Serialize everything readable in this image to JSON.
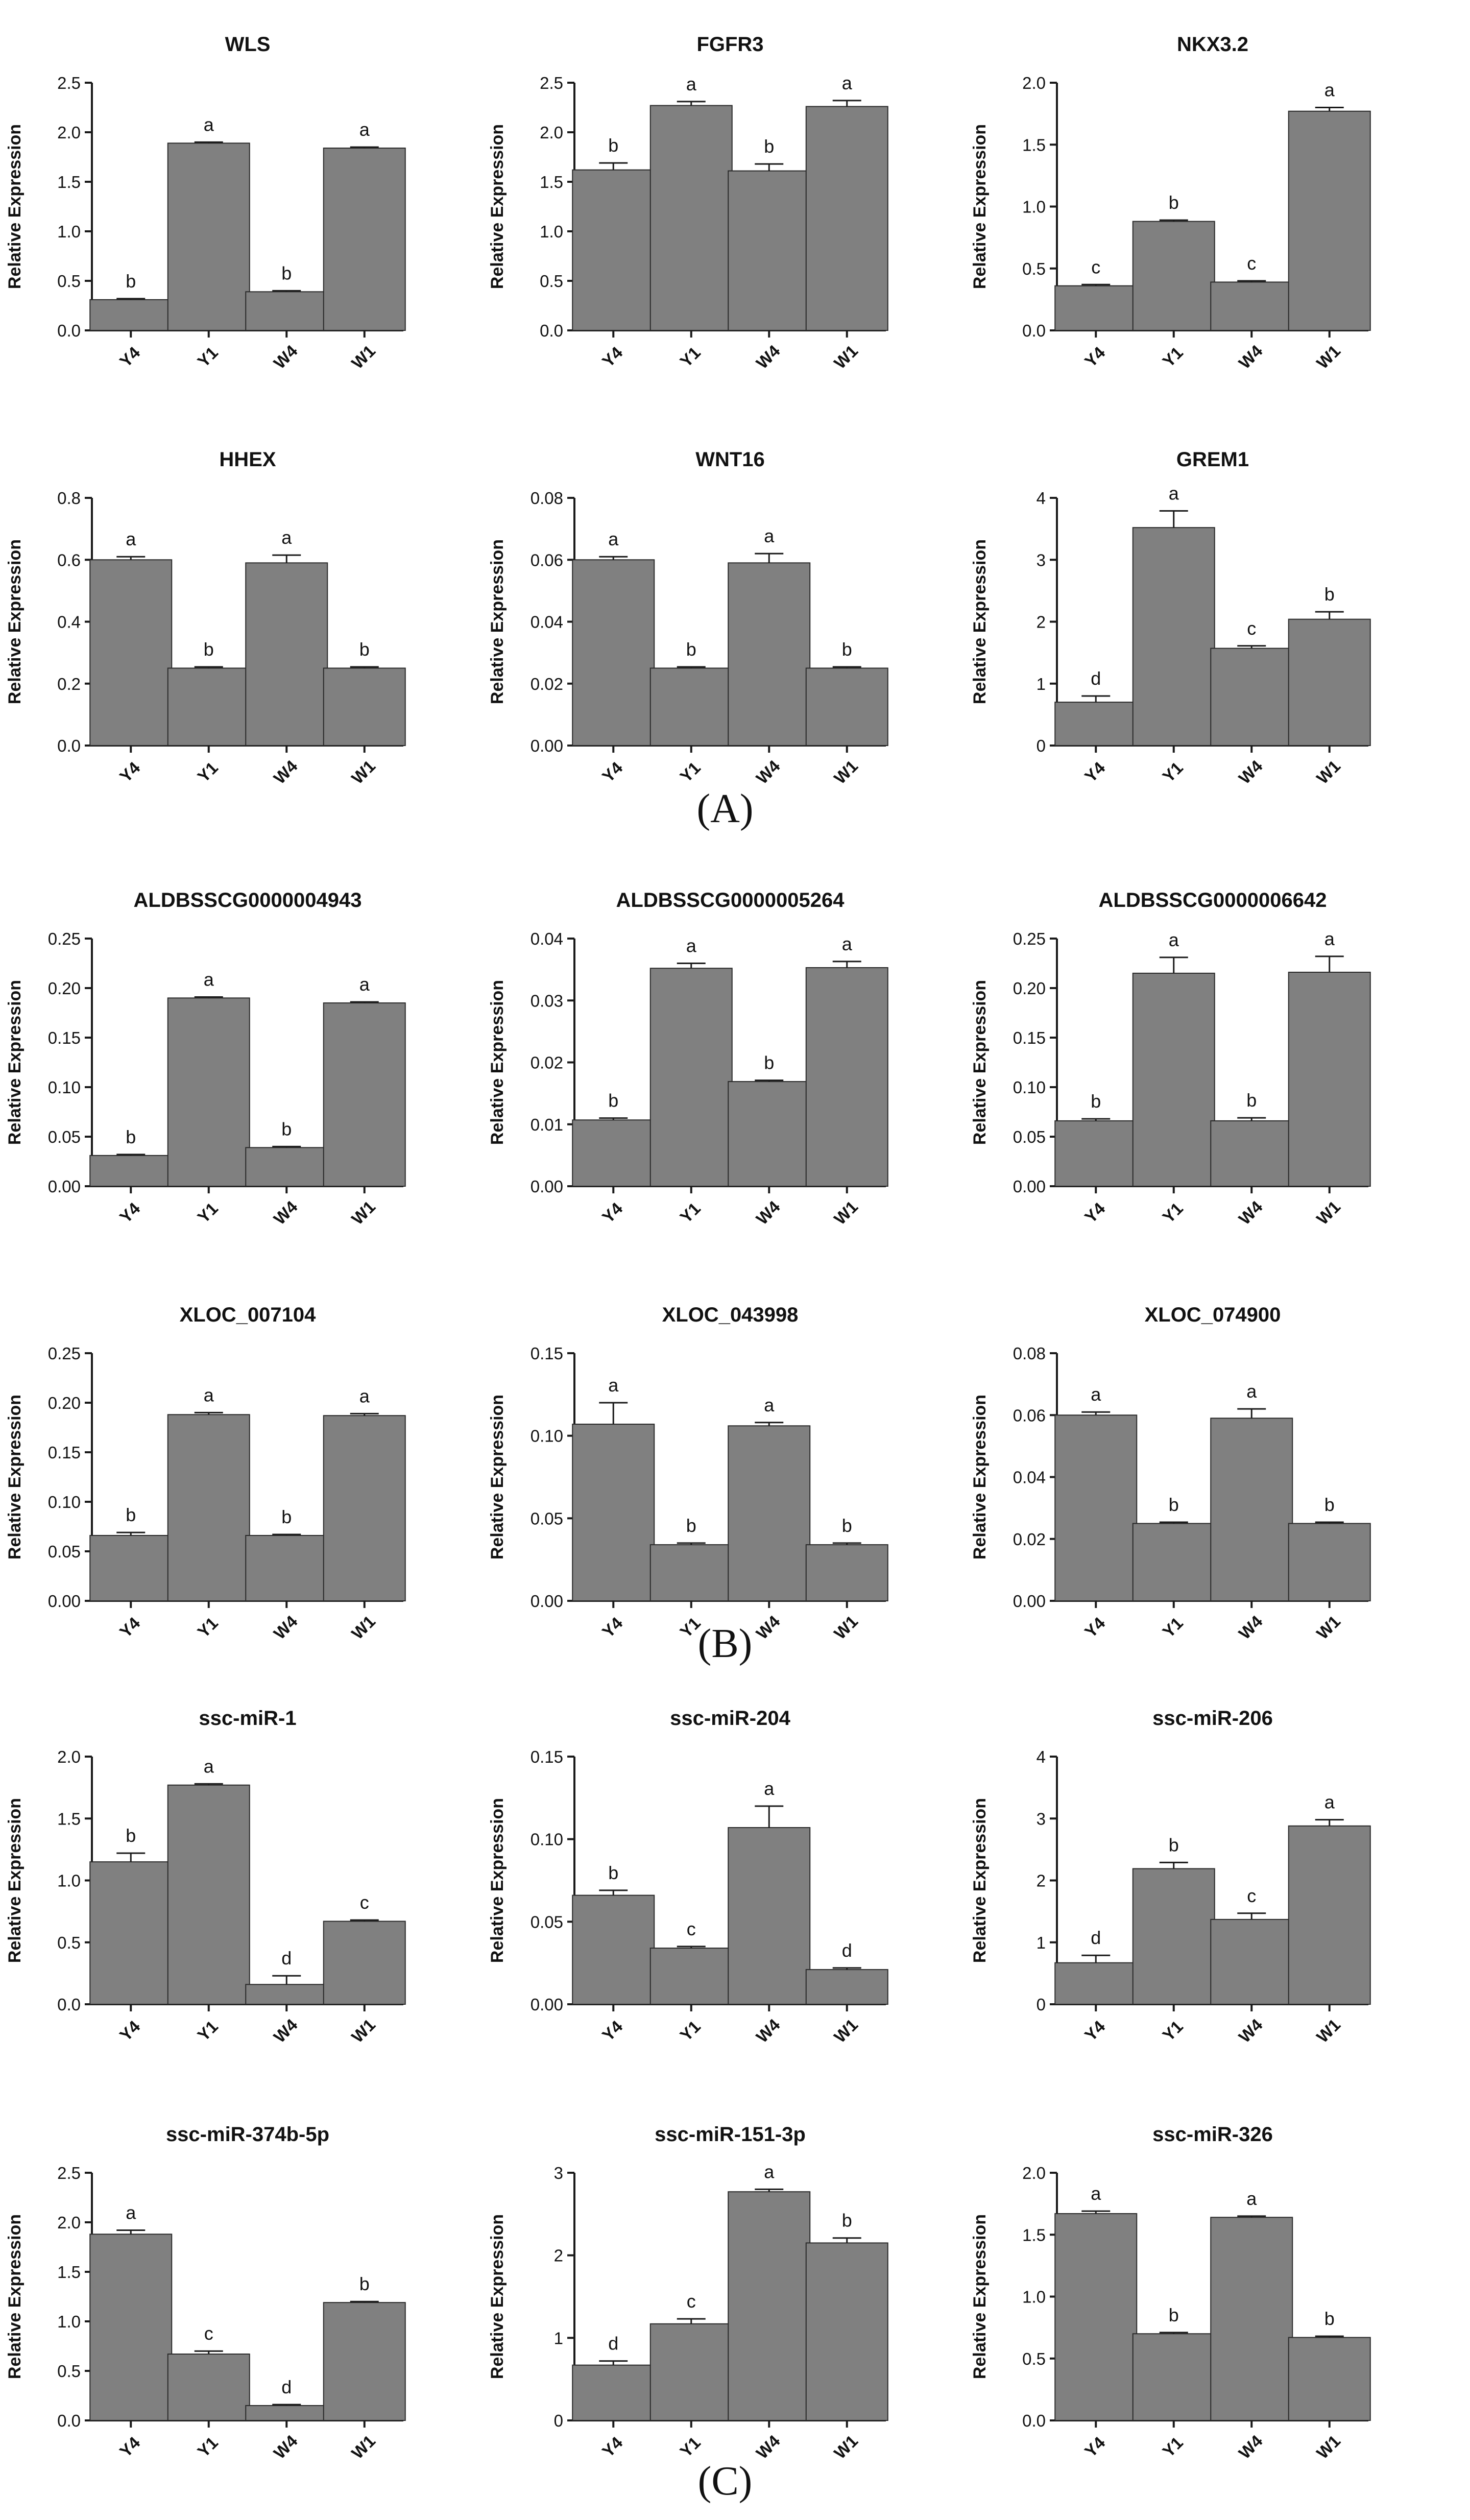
{
  "ylabel": "Relative Expression",
  "panel_labels": [
    "(A)",
    "(B)",
    "(C)"
  ],
  "colors": {
    "bar": "#808080",
    "bar_edge": "#2a2a2a",
    "axis": "#1a1a1a",
    "text": "#111111"
  },
  "chart_data": [
    {
      "type": "bar",
      "title": "WLS",
      "categories": [
        "Y4",
        "Y1",
        "W4",
        "W1"
      ],
      "values": [
        0.31,
        1.89,
        0.39,
        1.84
      ],
      "errors": [
        0.01,
        0.01,
        0.01,
        0.01
      ],
      "letters": [
        "b",
        "a",
        "b",
        "a"
      ],
      "ylim": [
        0,
        2.5
      ],
      "yticks": [
        "0.0",
        "0.5",
        "1.0",
        "1.5",
        "2.0",
        "2.5"
      ]
    },
    {
      "type": "bar",
      "title": "FGFR3",
      "categories": [
        "Y4",
        "Y1",
        "W4",
        "W1"
      ],
      "values": [
        1.62,
        2.27,
        1.61,
        2.26
      ],
      "errors": [
        0.07,
        0.04,
        0.07,
        0.06
      ],
      "letters": [
        "b",
        "a",
        "b",
        "a"
      ],
      "ylim": [
        0,
        2.5
      ],
      "yticks": [
        "0.0",
        "0.5",
        "1.0",
        "1.5",
        "2.0",
        "2.5"
      ]
    },
    {
      "type": "bar",
      "title": "NKX3.2",
      "categories": [
        "Y4",
        "Y1",
        "W4",
        "W1"
      ],
      "values": [
        0.36,
        0.88,
        0.39,
        1.77
      ],
      "errors": [
        0.01,
        0.01,
        0.01,
        0.03
      ],
      "letters": [
        "c",
        "b",
        "c",
        "a"
      ],
      "ylim": [
        0,
        2.0
      ],
      "yticks": [
        "0.0",
        "0.5",
        "1.0",
        "1.5",
        "2.0"
      ]
    },
    {
      "type": "bar",
      "title": "HHEX",
      "categories": [
        "Y4",
        "Y1",
        "W4",
        "W1"
      ],
      "values": [
        0.6,
        0.25,
        0.59,
        0.25
      ],
      "errors": [
        0.01,
        0.004,
        0.025,
        0.004
      ],
      "letters": [
        "a",
        "b",
        "a",
        "b"
      ],
      "ylim": [
        0,
        0.8
      ],
      "yticks": [
        "0.0",
        "0.2",
        "0.4",
        "0.6",
        "0.8"
      ]
    },
    {
      "type": "bar",
      "title": "WNT16",
      "categories": [
        "Y4",
        "Y1",
        "W4",
        "W1"
      ],
      "values": [
        0.06,
        0.025,
        0.059,
        0.025
      ],
      "errors": [
        0.001,
        0.0004,
        0.003,
        0.0004
      ],
      "letters": [
        "a",
        "b",
        "a",
        "b"
      ],
      "ylim": [
        0,
        0.08
      ],
      "yticks": [
        "0.00",
        "0.02",
        "0.04",
        "0.06",
        "0.08"
      ]
    },
    {
      "type": "bar",
      "title": "GREM1",
      "categories": [
        "Y4",
        "Y1",
        "W4",
        "W1"
      ],
      "values": [
        0.7,
        3.52,
        1.57,
        2.04
      ],
      "errors": [
        0.1,
        0.27,
        0.04,
        0.12
      ],
      "letters": [
        "d",
        "a",
        "c",
        "b"
      ],
      "ylim": [
        0,
        4
      ],
      "yticks": [
        "0",
        "1",
        "2",
        "3",
        "4"
      ]
    },
    {
      "type": "bar",
      "title": "ALDBSSCG0000004943",
      "categories": [
        "Y4",
        "Y1",
        "W4",
        "W1"
      ],
      "values": [
        0.031,
        0.19,
        0.039,
        0.185
      ],
      "errors": [
        0.001,
        0.001,
        0.001,
        0.001
      ],
      "letters": [
        "b",
        "a",
        "b",
        "a"
      ],
      "ylim": [
        0,
        0.25
      ],
      "yticks": [
        "0.00",
        "0.05",
        "0.10",
        "0.15",
        "0.20",
        "0.25"
      ]
    },
    {
      "type": "bar",
      "title": "ALDBSSCG0000005264",
      "categories": [
        "Y4",
        "Y1",
        "W4",
        "W1"
      ],
      "values": [
        0.0107,
        0.0352,
        0.0169,
        0.0353
      ],
      "errors": [
        0.0003,
        0.0008,
        0.0002,
        0.001
      ],
      "letters": [
        "b",
        "a",
        "b",
        "a"
      ],
      "ylim": [
        0,
        0.04
      ],
      "yticks": [
        "0.00",
        "0.01",
        "0.02",
        "0.03",
        "0.04"
      ]
    },
    {
      "type": "bar",
      "title": "ALDBSSCG0000006642",
      "categories": [
        "Y4",
        "Y1",
        "W4",
        "W1"
      ],
      "values": [
        0.066,
        0.215,
        0.066,
        0.216
      ],
      "errors": [
        0.002,
        0.016,
        0.003,
        0.016
      ],
      "letters": [
        "b",
        "a",
        "b",
        "a"
      ],
      "ylim": [
        0,
        0.25
      ],
      "yticks": [
        "0.00",
        "0.05",
        "0.10",
        "0.15",
        "0.20",
        "0.25"
      ]
    },
    {
      "type": "bar",
      "title": "XLOC_007104",
      "categories": [
        "Y4",
        "Y1",
        "W4",
        "W1"
      ],
      "values": [
        0.066,
        0.188,
        0.066,
        0.187
      ],
      "errors": [
        0.003,
        0.002,
        0.001,
        0.002
      ],
      "letters": [
        "b",
        "a",
        "b",
        "a"
      ],
      "ylim": [
        0,
        0.25
      ],
      "yticks": [
        "0.00",
        "0.05",
        "0.10",
        "0.15",
        "0.20",
        "0.25"
      ]
    },
    {
      "type": "bar",
      "title": "XLOC_043998",
      "categories": [
        "Y4",
        "Y1",
        "W4",
        "W1"
      ],
      "values": [
        0.107,
        0.034,
        0.106,
        0.034
      ],
      "errors": [
        0.013,
        0.001,
        0.002,
        0.001
      ],
      "letters": [
        "a",
        "b",
        "a",
        "b"
      ],
      "ylim": [
        0,
        0.15
      ],
      "yticks": [
        "0.00",
        "0.05",
        "0.10",
        "0.15"
      ]
    },
    {
      "type": "bar",
      "title": "XLOC_074900",
      "categories": [
        "Y4",
        "Y1",
        "W4",
        "W1"
      ],
      "values": [
        0.06,
        0.025,
        0.059,
        0.025
      ],
      "errors": [
        0.001,
        0.0004,
        0.003,
        0.0004
      ],
      "letters": [
        "a",
        "b",
        "a",
        "b"
      ],
      "ylim": [
        0,
        0.08
      ],
      "yticks": [
        "0.00",
        "0.02",
        "0.04",
        "0.06",
        "0.08"
      ]
    },
    {
      "type": "bar",
      "title": "ssc-miR-1",
      "categories": [
        "Y4",
        "Y1",
        "W4",
        "W1"
      ],
      "values": [
        1.15,
        1.77,
        0.16,
        0.67
      ],
      "errors": [
        0.07,
        0.01,
        0.07,
        0.01
      ],
      "letters": [
        "b",
        "a",
        "d",
        "c"
      ],
      "ylim": [
        0,
        2.0
      ],
      "yticks": [
        "0.0",
        "0.5",
        "1.0",
        "1.5",
        "2.0"
      ]
    },
    {
      "type": "bar",
      "title": "ssc-miR-204",
      "categories": [
        "Y4",
        "Y1",
        "W4",
        "W1"
      ],
      "values": [
        0.066,
        0.034,
        0.107,
        0.021
      ],
      "errors": [
        0.003,
        0.001,
        0.013,
        0.001
      ],
      "letters": [
        "b",
        "c",
        "a",
        "d"
      ],
      "ylim": [
        0,
        0.15
      ],
      "yticks": [
        "0.00",
        "0.05",
        "0.10",
        "0.15"
      ]
    },
    {
      "type": "bar",
      "title": "ssc-miR-206",
      "categories": [
        "Y4",
        "Y1",
        "W4",
        "W1"
      ],
      "values": [
        0.67,
        2.19,
        1.37,
        2.88
      ],
      "errors": [
        0.12,
        0.1,
        0.1,
        0.1
      ],
      "letters": [
        "d",
        "b",
        "c",
        "a"
      ],
      "ylim": [
        0,
        4
      ],
      "yticks": [
        "0",
        "1",
        "2",
        "3",
        "4"
      ]
    },
    {
      "type": "bar",
      "title": "ssc-miR-374b-5p",
      "categories": [
        "Y4",
        "Y1",
        "W4",
        "W1"
      ],
      "values": [
        1.88,
        0.67,
        0.15,
        1.19
      ],
      "errors": [
        0.04,
        0.03,
        0.01,
        0.01
      ],
      "letters": [
        "a",
        "c",
        "d",
        "b"
      ],
      "ylim": [
        0,
        2.5
      ],
      "yticks": [
        "0.0",
        "0.5",
        "1.0",
        "1.5",
        "2.0",
        "2.5"
      ]
    },
    {
      "type": "bar",
      "title": "ssc-miR-151-3p",
      "categories": [
        "Y4",
        "Y1",
        "W4",
        "W1"
      ],
      "values": [
        0.67,
        1.17,
        2.77,
        2.15
      ],
      "errors": [
        0.05,
        0.06,
        0.03,
        0.06
      ],
      "letters": [
        "d",
        "c",
        "a",
        "b"
      ],
      "ylim": [
        0,
        3
      ],
      "yticks": [
        "0",
        "1",
        "2",
        "3"
      ]
    },
    {
      "type": "bar",
      "title": "ssc-miR-326",
      "categories": [
        "Y4",
        "Y1",
        "W4",
        "W1"
      ],
      "values": [
        1.67,
        0.7,
        1.64,
        0.67
      ],
      "errors": [
        0.02,
        0.01,
        0.01,
        0.01
      ],
      "letters": [
        "a",
        "b",
        "a",
        "b"
      ],
      "ylim": [
        0,
        2.0
      ],
      "yticks": [
        "0.0",
        "0.5",
        "1.0",
        "1.5",
        "2.0"
      ]
    }
  ]
}
